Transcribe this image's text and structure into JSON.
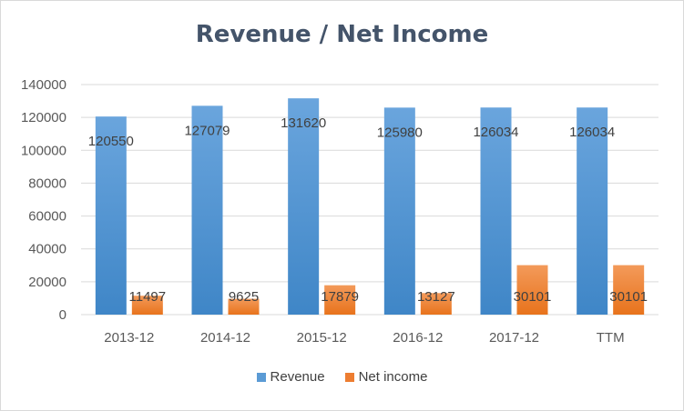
{
  "chart_data": {
    "type": "bar",
    "title": "Revenue / Net Income",
    "xlabel": "",
    "ylabel": "",
    "categories": [
      "2013-12",
      "2014-12",
      "2015-12",
      "2016-12",
      "2017-12",
      "TTM"
    ],
    "series": [
      {
        "name": "Revenue",
        "color": "#5b9bd5",
        "values": [
          120550,
          127079,
          131620,
          125980,
          126034,
          126034
        ]
      },
      {
        "name": "Net income",
        "color": "#ed7d31",
        "values": [
          11497,
          9625,
          17879,
          13127,
          30101,
          30101
        ]
      }
    ],
    "ylim": [
      0,
      140000
    ],
    "yticks": [
      "0",
      "20000",
      "40000",
      "60000",
      "80000",
      "100000",
      "120000",
      "140000"
    ],
    "grid": true,
    "legend_position": "bottom",
    "data_labels": true
  }
}
